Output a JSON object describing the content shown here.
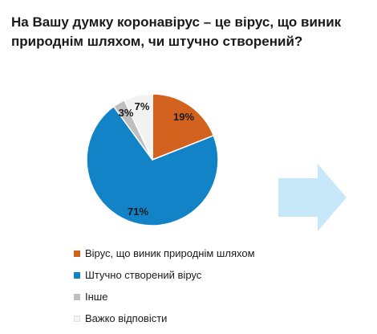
{
  "chart_data": {
    "type": "pie",
    "title": "На Вашу думку коронавірус – це вірус, що виник природнім шляхом, чи штучно створений?",
    "slices": [
      {
        "label": "Вірус, що виник природнім шляхом",
        "value": 19,
        "value_label": "19%",
        "color": "#D3621F"
      },
      {
        "label": "Штучно створений вірус",
        "value": 71,
        "value_label": "71%",
        "color": "#1283C6"
      },
      {
        "label": "Інше",
        "value": 3,
        "value_label": "3%",
        "color": "#BFBFBF"
      },
      {
        "label": "Важко відповісти",
        "value": 7,
        "value_label": "7%",
        "color": "#F2F2F2"
      }
    ],
    "legend_position": "bottom-left"
  },
  "decor": {
    "arrow_icon": "right-arrow-icon",
    "arrow_color": "#C6E8F8"
  }
}
